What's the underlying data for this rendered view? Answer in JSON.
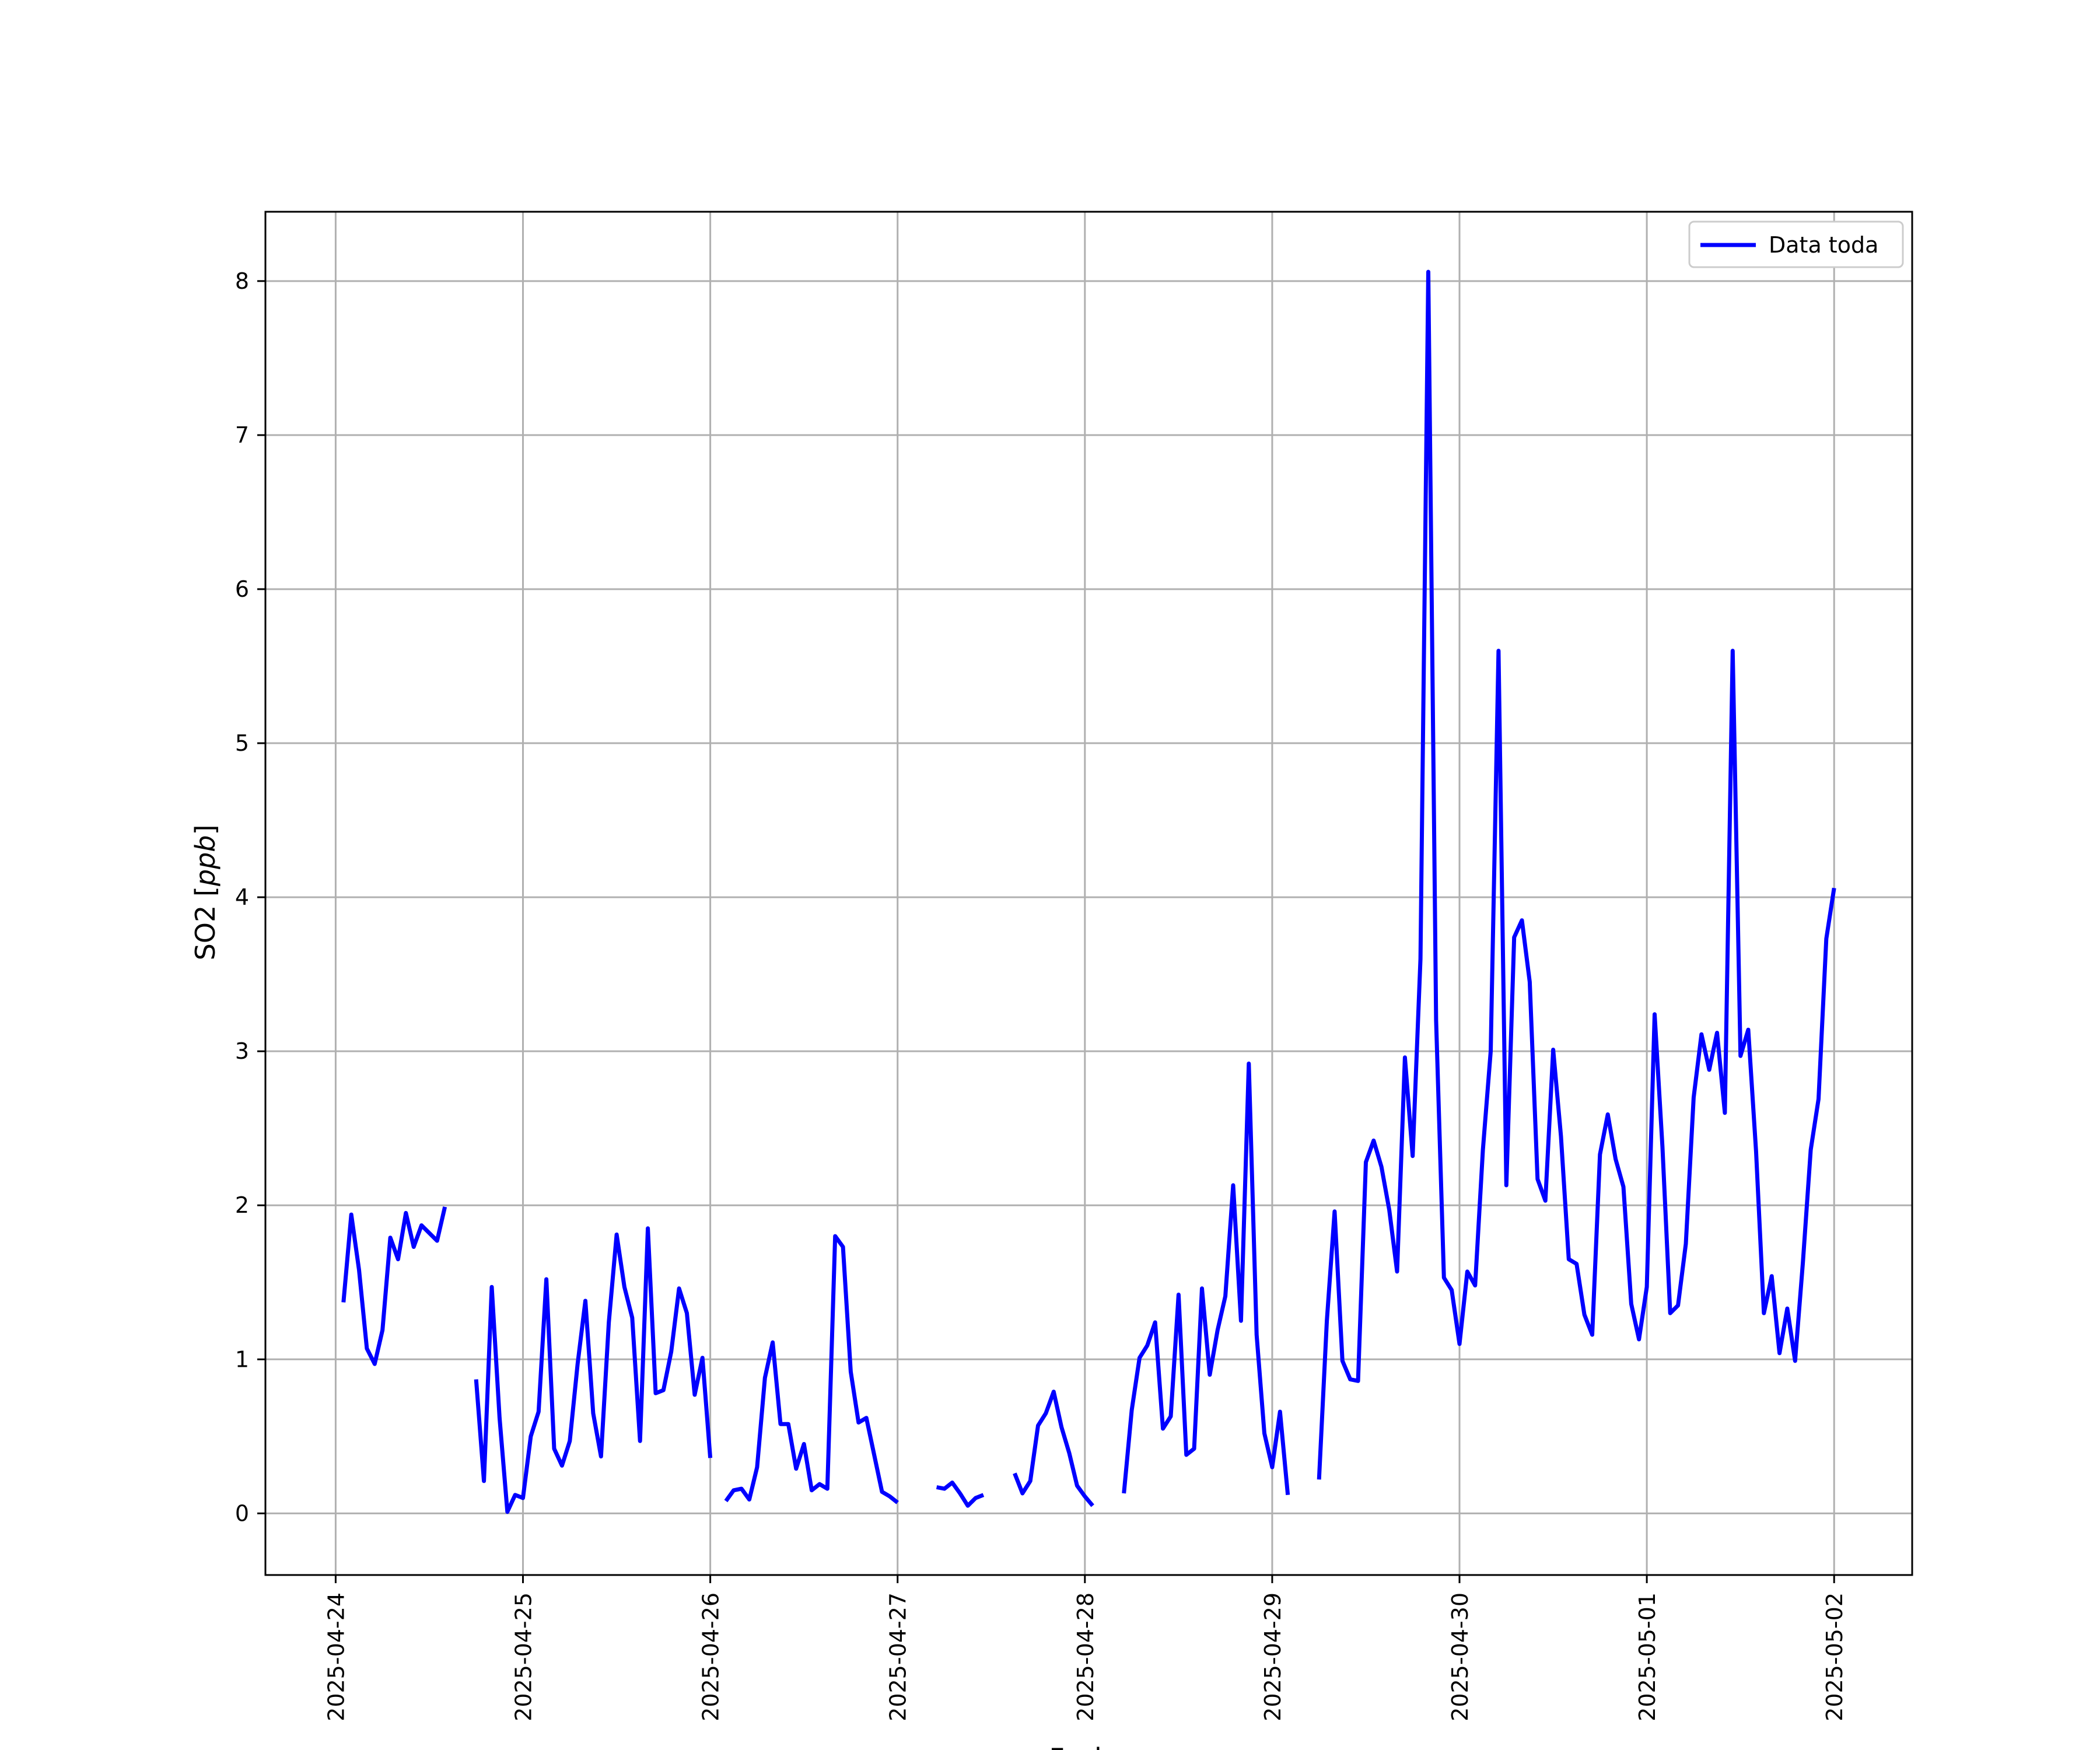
{
  "chart_data": {
    "type": "line",
    "xlabel": "Fecha",
    "ylabel": "SO2 [ppb]",
    "ylabel_text": "SO2 ",
    "ylabel_unit": "ppb",
    "x_ticks": [
      "2025-04-24",
      "2025-04-25",
      "2025-04-26",
      "2025-04-27",
      "2025-04-28",
      "2025-04-29",
      "2025-04-30",
      "2025-05-01",
      "2025-05-02"
    ],
    "y_ticks": [
      "0",
      "1",
      "2",
      "3",
      "4",
      "5",
      "6",
      "7",
      "8"
    ],
    "xlim": [
      "2025-04-23T15:00",
      "2025-05-02T10:00"
    ],
    "ylim": [
      -0.4,
      8.45
    ],
    "grid": true,
    "legend_position": "top-right",
    "series": [
      {
        "name": "Data toda",
        "color": "#0000ff",
        "segments": [
          [
            [
              "2025-04-24T01:00",
              1.37
            ],
            [
              "2025-04-24T02:00",
              1.94
            ],
            [
              "2025-04-24T03:00",
              1.58
            ],
            [
              "2025-04-24T04:00",
              1.07
            ],
            [
              "2025-04-24T05:00",
              0.97
            ],
            [
              "2025-04-24T06:00",
              1.19
            ],
            [
              "2025-04-24T07:00",
              1.79
            ],
            [
              "2025-04-24T08:00",
              1.65
            ],
            [
              "2025-04-24T09:00",
              1.95
            ],
            [
              "2025-04-24T10:00",
              1.73
            ],
            [
              "2025-04-24T11:00",
              1.87
            ],
            [
              "2025-04-24T13:00",
              1.77
            ],
            [
              "2025-04-24T14:00",
              1.99
            ]
          ],
          [
            [
              "2025-04-24T18:00",
              0.87
            ],
            [
              "2025-04-24T19:00",
              0.21
            ],
            [
              "2025-04-24T20:00",
              1.47
            ],
            [
              "2025-04-24T21:00",
              0.62
            ],
            [
              "2025-04-24T22:00",
              0.01
            ],
            [
              "2025-04-24T23:00",
              0.12
            ],
            [
              "2025-04-25T00:00",
              0.1
            ],
            [
              "2025-04-25T01:00",
              0.5
            ],
            [
              "2025-04-25T02:00",
              0.66
            ],
            [
              "2025-04-25T03:00",
              1.52
            ],
            [
              "2025-04-25T04:00",
              0.42
            ],
            [
              "2025-04-25T05:00",
              0.31
            ],
            [
              "2025-04-25T06:00",
              0.47
            ],
            [
              "2025-04-25T07:00",
              0.97
            ],
            [
              "2025-04-25T08:00",
              1.38
            ],
            [
              "2025-04-25T09:00",
              0.65
            ],
            [
              "2025-04-25T10:00",
              0.37
            ],
            [
              "2025-04-25T11:00",
              1.24
            ],
            [
              "2025-04-25T12:00",
              1.81
            ],
            [
              "2025-04-25T13:00",
              1.47
            ],
            [
              "2025-04-25T14:00",
              1.27
            ],
            [
              "2025-04-25T15:00",
              0.47
            ],
            [
              "2025-04-25T16:00",
              1.85
            ],
            [
              "2025-04-25T17:00",
              0.78
            ],
            [
              "2025-04-25T18:00",
              0.8
            ],
            [
              "2025-04-25T19:00",
              1.05
            ],
            [
              "2025-04-25T20:00",
              1.46
            ],
            [
              "2025-04-25T21:00",
              1.3
            ],
            [
              "2025-04-25T22:00",
              0.77
            ],
            [
              "2025-04-25T23:00",
              1.01
            ],
            [
              "2025-04-26T00:00",
              0.36
            ]
          ],
          [
            [
              "2025-04-26T02:00",
              0.08
            ],
            [
              "2025-04-26T03:00",
              0.15
            ],
            [
              "2025-04-26T04:00",
              0.16
            ],
            [
              "2025-04-26T05:00",
              0.09
            ],
            [
              "2025-04-26T06:00",
              0.3
            ],
            [
              "2025-04-26T07:00",
              0.88
            ],
            [
              "2025-04-26T08:00",
              1.11
            ],
            [
              "2025-04-26T09:00",
              0.58
            ],
            [
              "2025-04-26T10:00",
              0.58
            ],
            [
              "2025-04-26T11:00",
              0.29
            ],
            [
              "2025-04-26T12:00",
              0.45
            ],
            [
              "2025-04-26T13:00",
              0.15
            ],
            [
              "2025-04-26T14:00",
              0.19
            ],
            [
              "2025-04-26T15:00",
              0.16
            ],
            [
              "2025-04-26T16:00",
              1.8
            ],
            [
              "2025-04-26T17:00",
              1.73
            ],
            [
              "2025-04-26T18:00",
              0.92
            ],
            [
              "2025-04-26T19:00",
              0.59
            ],
            [
              "2025-04-26T20:00",
              0.62
            ],
            [
              "2025-04-26T21:00",
              0.38
            ],
            [
              "2025-04-26T22:00",
              0.14
            ],
            [
              "2025-04-26T23:00",
              0.11
            ],
            [
              "2025-04-27T00:00",
              0.07
            ]
          ],
          [
            [
              "2025-04-27T05:00",
              0.17
            ],
            [
              "2025-04-27T06:00",
              0.16
            ],
            [
              "2025-04-27T07:00",
              0.2
            ],
            [
              "2025-04-27T08:00",
              0.13
            ],
            [
              "2025-04-27T09:00",
              0.05
            ],
            [
              "2025-04-27T10:00",
              0.1
            ],
            [
              "2025-04-27T11:00",
              0.12
            ]
          ],
          [
            [
              "2025-04-27T15:00",
              0.26
            ],
            [
              "2025-04-27T16:00",
              0.13
            ],
            [
              "2025-04-27T17:00",
              0.21
            ],
            [
              "2025-04-27T18:00",
              0.57
            ],
            [
              "2025-04-27T19:00",
              0.65
            ],
            [
              "2025-04-27T20:00",
              0.79
            ],
            [
              "2025-04-27T21:00",
              0.56
            ],
            [
              "2025-04-27T22:00",
              0.39
            ],
            [
              "2025-04-27T23:00",
              0.18
            ],
            [
              "2025-04-28T00:00",
              0.11
            ],
            [
              "2025-04-28T01:00",
              0.05
            ]
          ],
          [
            [
              "2025-04-28T05:00",
              0.13
            ],
            [
              "2025-04-28T06:00",
              0.67
            ],
            [
              "2025-04-28T07:00",
              1.01
            ],
            [
              "2025-04-28T08:00",
              1.09
            ],
            [
              "2025-04-28T09:00",
              1.24
            ],
            [
              "2025-04-28T10:00",
              0.55
            ],
            [
              "2025-04-28T11:00",
              0.63
            ],
            [
              "2025-04-28T12:00",
              1.42
            ],
            [
              "2025-04-28T13:00",
              0.38
            ],
            [
              "2025-04-28T14:00",
              0.42
            ],
            [
              "2025-04-28T15:00",
              1.46
            ],
            [
              "2025-04-28T16:00",
              0.9
            ],
            [
              "2025-04-28T17:00",
              1.19
            ],
            [
              "2025-04-28T18:00",
              1.41
            ],
            [
              "2025-04-28T19:00",
              2.13
            ],
            [
              "2025-04-28T20:00",
              1.25
            ],
            [
              "2025-04-28T21:00",
              2.92
            ],
            [
              "2025-04-28T22:00",
              1.16
            ],
            [
              "2025-04-28T23:00",
              0.52
            ],
            [
              "2025-04-29T00:00",
              0.3
            ],
            [
              "2025-04-29T01:00",
              0.66
            ],
            [
              "2025-04-29T02:00",
              0.12
            ]
          ],
          [
            [
              "2025-04-29T06:00",
              0.22
            ],
            [
              "2025-04-29T07:00",
              1.25
            ],
            [
              "2025-04-29T08:00",
              1.96
            ],
            [
              "2025-04-29T09:00",
              0.99
            ],
            [
              "2025-04-29T10:00",
              0.87
            ],
            [
              "2025-04-29T11:00",
              0.86
            ],
            [
              "2025-04-29T12:00",
              2.28
            ],
            [
              "2025-04-29T13:00",
              2.42
            ],
            [
              "2025-04-29T14:00",
              2.25
            ],
            [
              "2025-04-29T15:00",
              1.97
            ],
            [
              "2025-04-29T16:00",
              1.57
            ],
            [
              "2025-04-29T17:00",
              2.96
            ],
            [
              "2025-04-29T18:00",
              2.32
            ],
            [
              "2025-04-29T19:00",
              3.6
            ],
            [
              "2025-04-29T20:00",
              8.06
            ],
            [
              "2025-04-29T21:00",
              3.2
            ],
            [
              "2025-04-29T22:00",
              1.53
            ],
            [
              "2025-04-29T23:00",
              1.45
            ],
            [
              "2025-04-30T00:00",
              1.1
            ],
            [
              "2025-04-30T01:00",
              1.57
            ],
            [
              "2025-04-30T02:00",
              1.48
            ],
            [
              "2025-04-30T03:00",
              2.36
            ],
            [
              "2025-04-30T04:00",
              3.0
            ],
            [
              "2025-04-30T05:00",
              5.6
            ],
            [
              "2025-04-30T06:00",
              2.13
            ],
            [
              "2025-04-30T07:00",
              3.74
            ],
            [
              "2025-04-30T08:00",
              3.85
            ],
            [
              "2025-04-30T09:00",
              3.45
            ],
            [
              "2025-04-30T10:00",
              2.17
            ],
            [
              "2025-04-30T11:00",
              2.03
            ],
            [
              "2025-04-30T12:00",
              3.01
            ],
            [
              "2025-04-30T13:00",
              2.45
            ],
            [
              "2025-04-30T14:00",
              1.65
            ],
            [
              "2025-04-30T15:00",
              1.62
            ],
            [
              "2025-04-30T16:00",
              1.29
            ],
            [
              "2025-04-30T17:00",
              1.16
            ],
            [
              "2025-04-30T18:00",
              2.33
            ],
            [
              "2025-04-30T19:00",
              2.59
            ],
            [
              "2025-04-30T20:00",
              2.3
            ],
            [
              "2025-04-30T21:00",
              2.12
            ],
            [
              "2025-04-30T22:00",
              1.36
            ],
            [
              "2025-04-30T23:00",
              1.13
            ],
            [
              "2025-05-01T00:00",
              1.47
            ],
            [
              "2025-05-01T01:00",
              3.24
            ],
            [
              "2025-05-01T02:00",
              2.38
            ],
            [
              "2025-05-01T03:00",
              1.3
            ],
            [
              "2025-05-01T04:00",
              1.35
            ],
            [
              "2025-05-01T05:00",
              1.75
            ],
            [
              "2025-05-01T06:00",
              2.7
            ],
            [
              "2025-05-01T07:00",
              3.11
            ],
            [
              "2025-05-01T08:00",
              2.88
            ],
            [
              "2025-05-01T09:00",
              3.12
            ],
            [
              "2025-05-01T10:00",
              2.6
            ],
            [
              "2025-05-01T11:00",
              5.6
            ],
            [
              "2025-05-01T12:00",
              2.97
            ],
            [
              "2025-05-01T13:00",
              3.14
            ],
            [
              "2025-05-01T14:00",
              2.35
            ],
            [
              "2025-05-01T15:00",
              1.3
            ],
            [
              "2025-05-01T16:00",
              1.54
            ],
            [
              "2025-05-01T17:00",
              1.04
            ],
            [
              "2025-05-01T18:00",
              1.33
            ],
            [
              "2025-05-01T19:00",
              0.99
            ],
            [
              "2025-05-01T20:00",
              1.63
            ],
            [
              "2025-05-01T21:00",
              2.36
            ],
            [
              "2025-05-01T22:00",
              2.69
            ],
            [
              "2025-05-01T23:00",
              3.73
            ],
            [
              "2025-05-02T00:00",
              4.06
            ]
          ]
        ]
      }
    ]
  }
}
